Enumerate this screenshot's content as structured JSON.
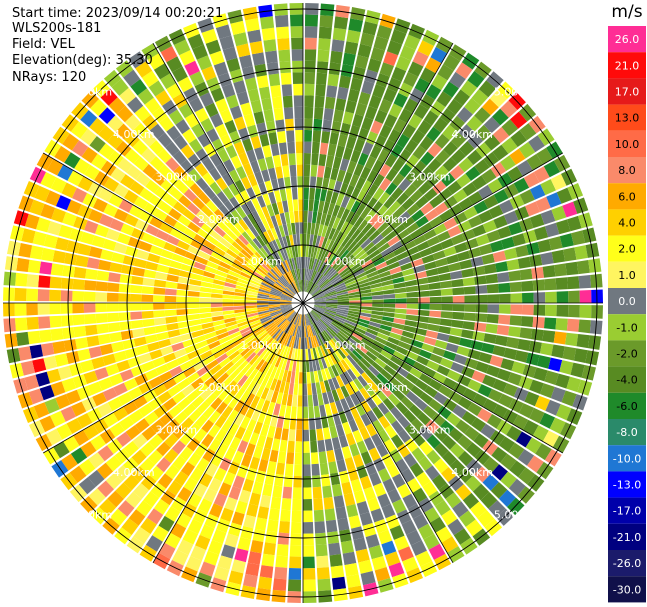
{
  "info": {
    "start_time": "Start time: 2023/09/14 00:20:21",
    "instrument": "WLS200s-181",
    "field": "Field: VEL",
    "elevation": "Elevation(deg): 35.30",
    "nrays": "NRays: 120"
  },
  "colorbar": {
    "unit": "m/s",
    "ticks": [
      "26.0",
      "21.0",
      "17.0",
      "13.0",
      "10.0",
      "8.0",
      "6.0",
      "4.0",
      "2.0",
      "1.0",
      "0.0",
      "-1.0",
      "-2.0",
      "-4.0",
      "-6.0",
      "-8.0",
      "-10.0",
      "-13.0",
      "-17.0",
      "-21.0",
      "-26.0",
      "-30.0"
    ],
    "colors": [
      "#ff2d95",
      "#ff0a0a",
      "#e61a1a",
      "#ff4b1a",
      "#ff6b47",
      "#fa8a6a",
      "#ffaa00",
      "#ffd000",
      "#ffff1a",
      "#fff560",
      "#707880",
      "#9acd32",
      "#6b9a2a",
      "#588b22",
      "#1f8a2a",
      "#2a8a6a",
      "#1f77d4",
      "#0000ff",
      "#0000aa",
      "#000080",
      "#1b1b6b",
      "#10104a"
    ]
  },
  "chart_data": {
    "type": "heatmap",
    "projection": "polar PPI",
    "field": "VEL",
    "units": "m/s",
    "n_rays": 120,
    "range_rings_km": [
      "1.00km",
      "2.00km",
      "3.00km",
      "4.00km",
      "5.00km"
    ],
    "vmin": -30.0,
    "vmax": 26.0
  }
}
